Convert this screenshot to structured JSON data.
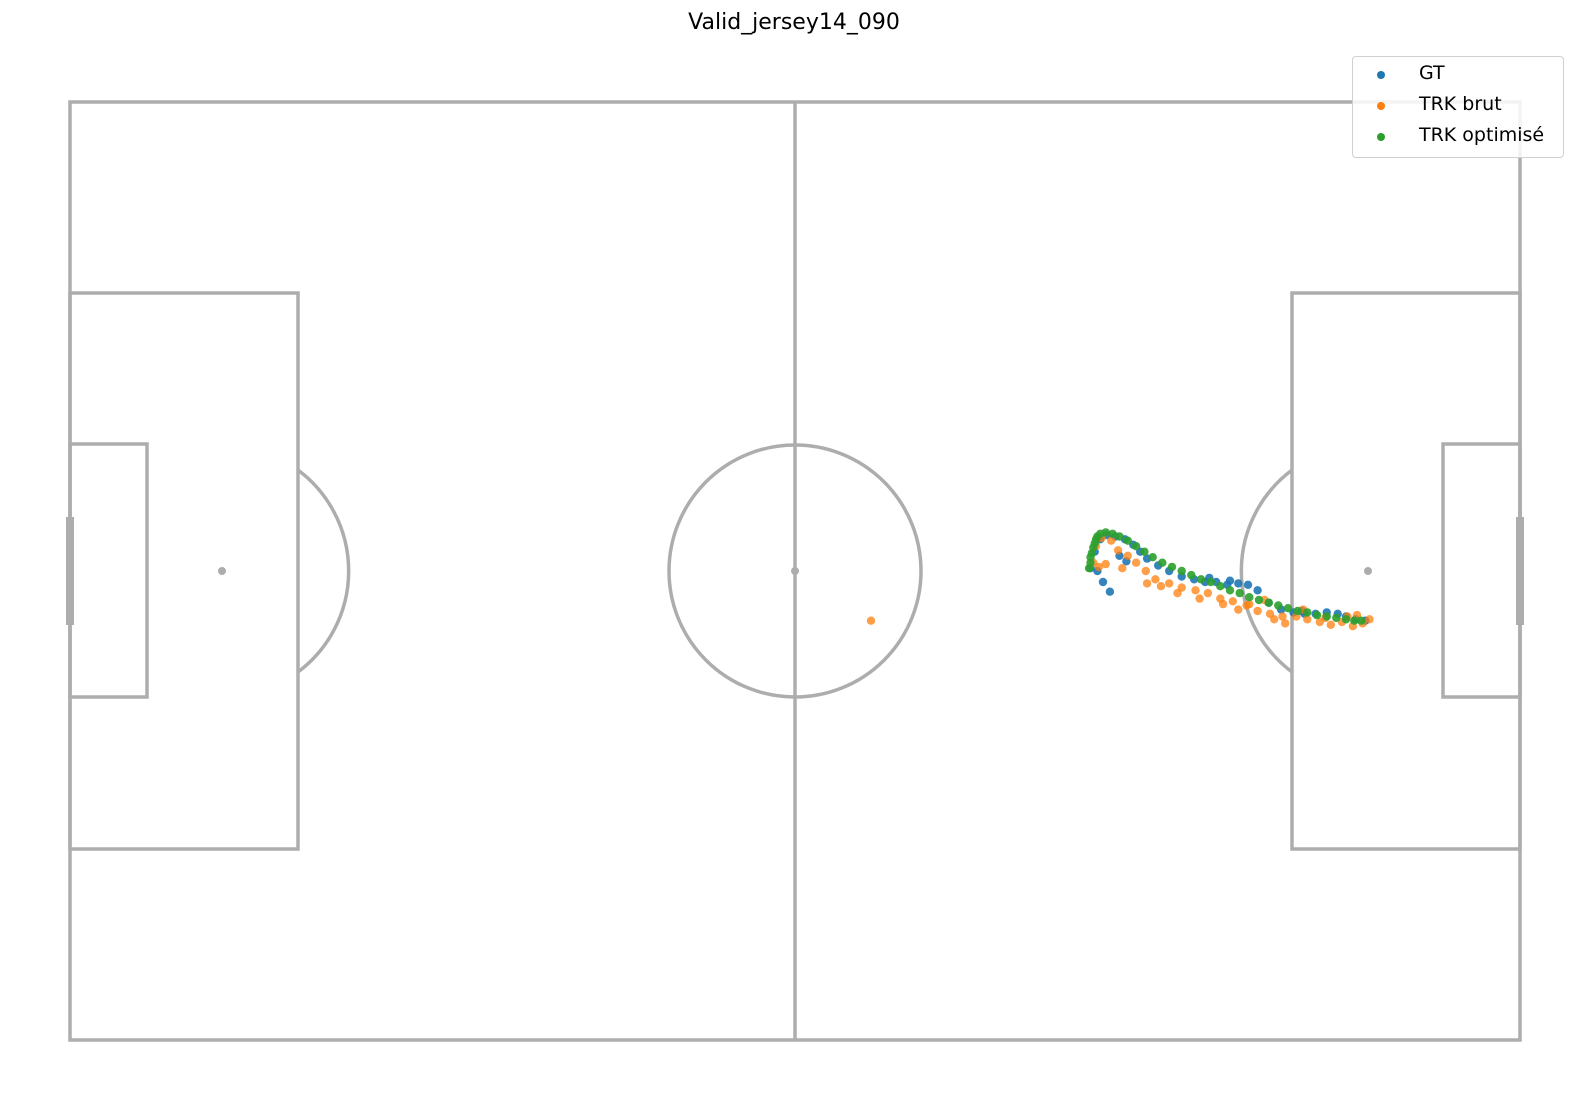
{
  "chart_data": {
    "type": "scatter",
    "title": "Valid_jersey14_090",
    "xlabel": "",
    "ylabel": "",
    "xlim": [
      0,
      105
    ],
    "ylim": [
      68,
      0
    ],
    "grid": false,
    "background": "football pitch outline",
    "legend_position": "top-right",
    "colors": {
      "pitch_lines": "#adadad",
      "GT": "#1f77b4",
      "TRK brut": "#ff7f0e",
      "TRK optimisé": "#2ca02c"
    },
    "series": [
      {
        "name": "GT",
        "color": "#1f77b4",
        "points": [
          [
            73.9,
            33.8
          ],
          [
            74.2,
            32.6
          ],
          [
            74.6,
            31.7
          ],
          [
            75.1,
            31.4
          ],
          [
            75.7,
            31.5
          ],
          [
            76.4,
            31.7
          ],
          [
            77.0,
            32.1
          ],
          [
            77.5,
            32.6
          ],
          [
            78.0,
            33.1
          ],
          [
            78.8,
            33.6
          ],
          [
            79.6,
            34.0
          ],
          [
            80.5,
            34.4
          ],
          [
            81.4,
            34.6
          ],
          [
            82.2,
            34.8
          ],
          [
            83.0,
            34.8
          ],
          [
            83.8,
            35.0
          ],
          [
            84.6,
            34.9
          ],
          [
            85.3,
            35.0
          ],
          [
            86.0,
            35.4
          ],
          [
            86.8,
            36.3
          ],
          [
            87.7,
            36.8
          ],
          [
            88.6,
            37.0
          ],
          [
            89.4,
            37.1
          ],
          [
            90.2,
            37.1
          ],
          [
            91.0,
            37.0
          ],
          [
            91.8,
            37.1
          ],
          [
            92.4,
            37.3
          ],
          [
            93.1,
            37.5
          ],
          [
            93.8,
            37.6
          ],
          [
            74.4,
            34.0
          ],
          [
            74.8,
            34.8
          ],
          [
            75.3,
            35.5
          ],
          [
            76.0,
            32.9
          ],
          [
            76.5,
            33.3
          ],
          [
            89.2,
            36.9
          ],
          [
            82.5,
            34.5
          ],
          [
            84.0,
            34.7
          ]
        ]
      },
      {
        "name": "TRK brut",
        "color": "#ff7f0e",
        "points": [
          [
            58.0,
            37.6
          ],
          [
            74.1,
            33.4
          ],
          [
            74.3,
            32.2
          ],
          [
            74.7,
            31.6
          ],
          [
            75.4,
            31.8
          ],
          [
            75.9,
            32.5
          ],
          [
            76.6,
            32.9
          ],
          [
            77.2,
            33.4
          ],
          [
            77.9,
            34.0
          ],
          [
            78.6,
            34.6
          ],
          [
            79.6,
            34.9
          ],
          [
            80.5,
            35.2
          ],
          [
            81.5,
            35.4
          ],
          [
            82.4,
            35.6
          ],
          [
            83.3,
            36.0
          ],
          [
            84.2,
            36.2
          ],
          [
            85.2,
            36.5
          ],
          [
            86.0,
            36.9
          ],
          [
            86.9,
            37.1
          ],
          [
            87.8,
            37.3
          ],
          [
            88.8,
            37.3
          ],
          [
            89.6,
            37.5
          ],
          [
            90.5,
            37.7
          ],
          [
            91.3,
            37.9
          ],
          [
            92.1,
            37.7
          ],
          [
            92.9,
            38.0
          ],
          [
            93.6,
            37.8
          ],
          [
            94.1,
            37.5
          ],
          [
            74.5,
            33.7
          ],
          [
            75.0,
            33.5
          ],
          [
            76.2,
            33.8
          ],
          [
            78.0,
            34.9
          ],
          [
            79.0,
            35.1
          ],
          [
            80.2,
            35.6
          ],
          [
            81.8,
            36.0
          ],
          [
            83.5,
            36.4
          ],
          [
            84.6,
            36.8
          ],
          [
            85.4,
            36.4
          ],
          [
            87.2,
            37.5
          ],
          [
            88.0,
            37.8
          ],
          [
            89.3,
            36.8
          ],
          [
            90.9,
            37.4
          ],
          [
            92.5,
            37.3
          ],
          [
            93.2,
            37.2
          ],
          [
            86.5,
            36.1
          ]
        ]
      },
      {
        "name": "TRK optimisé",
        "color": "#2ca02c",
        "points": [
          [
            73.8,
            33.8
          ],
          [
            73.9,
            33.0
          ],
          [
            74.1,
            32.3
          ],
          [
            74.3,
            31.7
          ],
          [
            74.6,
            31.3
          ],
          [
            75.0,
            31.2
          ],
          [
            75.5,
            31.3
          ],
          [
            76.0,
            31.5
          ],
          [
            76.6,
            31.8
          ],
          [
            77.2,
            32.2
          ],
          [
            77.8,
            32.6
          ],
          [
            78.4,
            33.0
          ],
          [
            79.1,
            33.4
          ],
          [
            79.8,
            33.7
          ],
          [
            80.5,
            34.0
          ],
          [
            81.2,
            34.3
          ],
          [
            81.9,
            34.6
          ],
          [
            82.6,
            34.8
          ],
          [
            83.3,
            35.1
          ],
          [
            84.0,
            35.4
          ],
          [
            84.7,
            35.6
          ],
          [
            85.4,
            35.9
          ],
          [
            86.1,
            36.1
          ],
          [
            86.8,
            36.3
          ],
          [
            87.5,
            36.5
          ],
          [
            88.2,
            36.7
          ],
          [
            88.9,
            36.9
          ],
          [
            89.6,
            37.0
          ],
          [
            90.3,
            37.2
          ],
          [
            91.0,
            37.3
          ],
          [
            91.7,
            37.4
          ],
          [
            92.4,
            37.5
          ],
          [
            93.0,
            37.6
          ],
          [
            93.5,
            37.6
          ],
          [
            73.9,
            33.4
          ],
          [
            74.0,
            32.7
          ],
          [
            74.2,
            32.0
          ],
          [
            74.4,
            31.5
          ]
        ]
      }
    ]
  }
}
